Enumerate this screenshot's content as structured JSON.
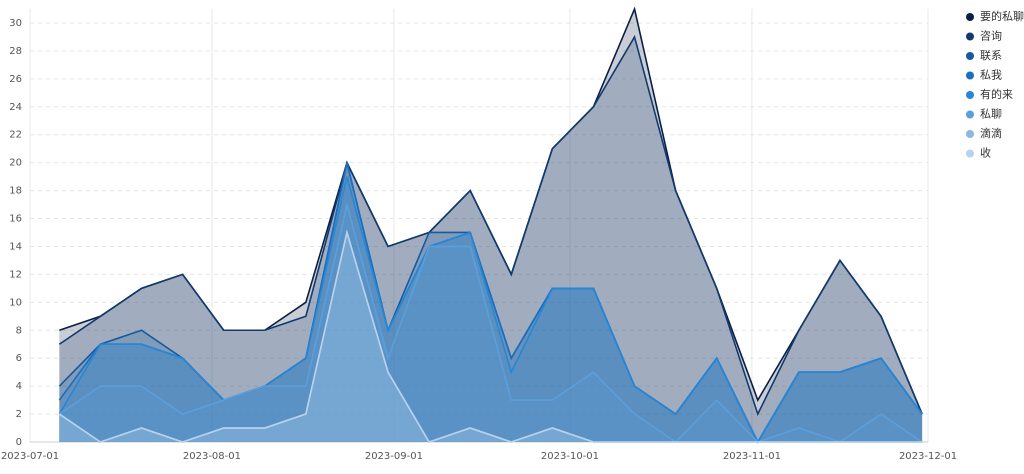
{
  "chart_data": {
    "type": "area",
    "x": [
      "2023-07-06",
      "2023-07-13",
      "2023-07-20",
      "2023-07-27",
      "2023-08-03",
      "2023-08-10",
      "2023-08-17",
      "2023-08-24",
      "2023-08-31",
      "2023-09-07",
      "2023-09-14",
      "2023-09-21",
      "2023-09-28",
      "2023-10-05",
      "2023-10-12",
      "2023-10-19",
      "2023-10-26",
      "2023-11-02",
      "2023-11-09",
      "2023-11-16",
      "2023-11-23",
      "2023-11-30"
    ],
    "series": [
      {
        "name": "要的私聊",
        "color": "#0b1f44",
        "values": [
          8,
          9,
          11,
          12,
          8,
          8,
          10,
          20,
          14,
          15,
          18,
          12,
          21,
          24,
          31,
          18,
          11,
          3,
          8,
          13,
          9,
          2
        ]
      },
      {
        "name": "咨询",
        "color": "#123a6e",
        "values": [
          7,
          9,
          11,
          12,
          8,
          8,
          9,
          20,
          14,
          15,
          18,
          12,
          21,
          24,
          29,
          18,
          11,
          2,
          8,
          13,
          9,
          2
        ]
      },
      {
        "name": "联系",
        "color": "#155a9e",
        "values": [
          4,
          7,
          8,
          6,
          3,
          4,
          6,
          20,
          8,
          15,
          15,
          6,
          11,
          11,
          4,
          2,
          6,
          0,
          5,
          5,
          6,
          2
        ]
      },
      {
        "name": "私我",
        "color": "#1a6fc0",
        "values": [
          3,
          7,
          7,
          6,
          3,
          4,
          6,
          20,
          8,
          14,
          15,
          6,
          11,
          11,
          4,
          2,
          6,
          0,
          5,
          5,
          6,
          2
        ]
      },
      {
        "name": "有的来",
        "color": "#2487d8",
        "values": [
          2,
          7,
          7,
          6,
          3,
          4,
          6,
          19,
          8,
          14,
          15,
          5,
          11,
          11,
          4,
          2,
          6,
          0,
          5,
          5,
          6,
          2
        ]
      },
      {
        "name": "私聊",
        "color": "#5a9fdc",
        "values": [
          2,
          4,
          4,
          2,
          3,
          4,
          4,
          17,
          6,
          14,
          14,
          3,
          3,
          5,
          2,
          0,
          3,
          0,
          1,
          0,
          2,
          0
        ]
      },
      {
        "name": "滴滴",
        "color": "#8ab8e2",
        "values": [
          2,
          0,
          1,
          0,
          1,
          1,
          2,
          15,
          5,
          0,
          1,
          0,
          1,
          0,
          0,
          0,
          0,
          0,
          0,
          0,
          0,
          0
        ]
      },
      {
        "name": "收",
        "color": "#b8d2ee",
        "values": [
          2,
          0,
          1,
          0,
          1,
          1,
          2,
          15,
          5,
          0,
          1,
          0,
          1,
          0,
          0,
          0,
          0,
          0,
          0,
          0,
          0,
          0
        ]
      }
    ],
    "xlim": [
      "2023-07-01",
      "2023-12-01"
    ],
    "xticks": [
      "2023-07-01",
      "2023-08-01",
      "2023-09-01",
      "2023-10-01",
      "2023-11-01",
      "2023-12-01"
    ],
    "ylim": [
      0,
      31
    ],
    "yticks": [
      0,
      2,
      4,
      6,
      8,
      10,
      12,
      14,
      16,
      18,
      20,
      22,
      24,
      26,
      28,
      30
    ],
    "grid": true,
    "legend": "top-right"
  }
}
